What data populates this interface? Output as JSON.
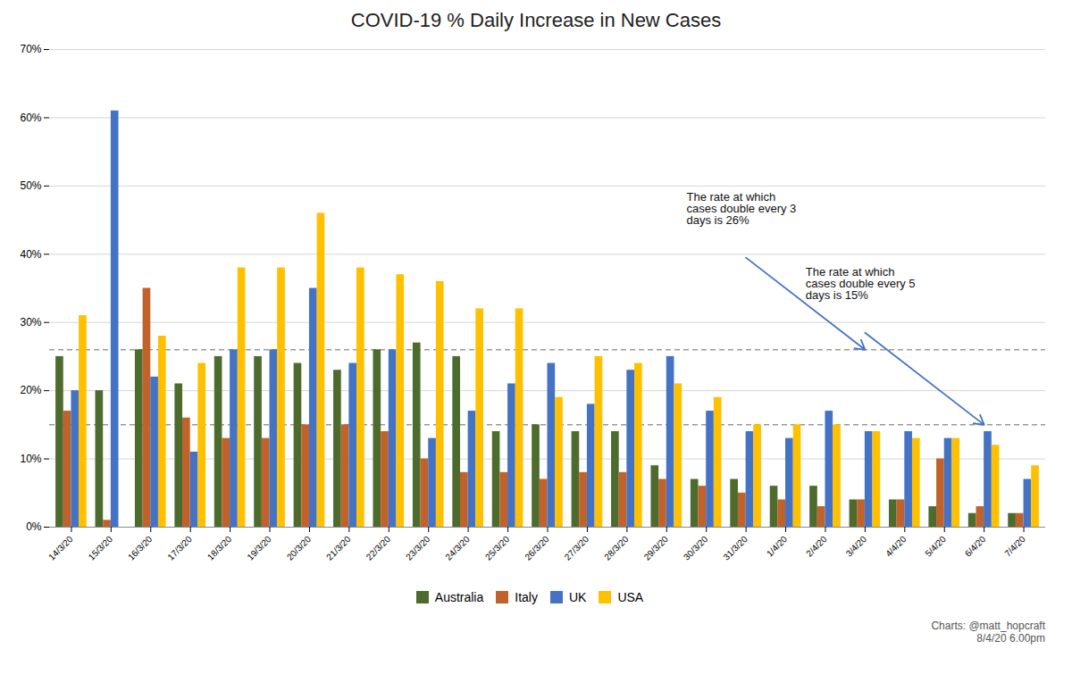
{
  "chart_data": {
    "type": "bar",
    "title": "COVID-19 % Daily Increase in New Cases",
    "categories": [
      "14/3/20",
      "15/3/20",
      "16/3/20",
      "17/3/20",
      "18/3/20",
      "19/3/20",
      "20/3/20",
      "21/3/20",
      "22/3/20",
      "23/3/20",
      "24/3/20",
      "25/3/20",
      "26/3/20",
      "27/3/20",
      "28/3/20",
      "29/3/20",
      "30/3/20",
      "31/3/20",
      "1/4/20",
      "2/4/20",
      "3/4/20",
      "4/4/20",
      "5/4/20",
      "6/4/20",
      "7/4/20"
    ],
    "series": [
      {
        "name": "Australia",
        "color": "#4e6b2e",
        "values": [
          25,
          20,
          26,
          21,
          25,
          25,
          24,
          23,
          26,
          27,
          25,
          14,
          15,
          14,
          14,
          9,
          7,
          7,
          6,
          6,
          4,
          4,
          3,
          2,
          2
        ]
      },
      {
        "name": "Italy",
        "color": "#c0622a",
        "values": [
          17,
          1,
          35,
          16,
          13,
          13,
          15,
          15,
          14,
          10,
          8,
          8,
          7,
          8,
          8,
          7,
          6,
          5,
          4,
          3,
          4,
          4,
          10,
          3,
          2
        ]
      },
      {
        "name": "UK",
        "color": "#4472c4",
        "values": [
          20,
          61,
          22,
          11,
          26,
          26,
          35,
          24,
          26,
          13,
          17,
          21,
          24,
          18,
          23,
          25,
          17,
          14,
          13,
          17,
          14,
          14,
          13,
          14,
          7
        ]
      },
      {
        "name": "USA",
        "color": "#ffc000",
        "values": [
          31,
          0,
          28,
          24,
          38,
          38,
          46,
          38,
          37,
          36,
          32,
          32,
          19,
          25,
          24,
          21,
          19,
          15,
          15,
          15,
          14,
          13,
          13,
          12,
          9
        ]
      }
    ],
    "ylim": [
      0,
      70
    ],
    "yticks": [
      {
        "value": 0,
        "label": "0%"
      },
      {
        "value": 10,
        "label": "10%"
      },
      {
        "value": 20,
        "label": "20%"
      },
      {
        "value": 30,
        "label": "30%"
      },
      {
        "value": 40,
        "label": "40%"
      },
      {
        "value": 50,
        "label": "50%"
      },
      {
        "value": 60,
        "label": "60%"
      },
      {
        "value": 70,
        "label": "70%"
      }
    ],
    "grid": true,
    "legend": "bottom",
    "reference_lines": [
      {
        "y": 26,
        "line_style": "dashed"
      },
      {
        "y": 15,
        "line_style": "dashed"
      }
    ],
    "annotations": [
      {
        "text": "The rate at which\ncases double every 3\ndays is 26%",
        "x": "3/4/20",
        "y": 26
      },
      {
        "text": "The rate at which\ncases double every 5\ndays is 15%",
        "x": "6/4/20",
        "y": 15
      }
    ],
    "caption": "Charts: @matt_hopcraft\n8/4/20 6.00pm"
  }
}
